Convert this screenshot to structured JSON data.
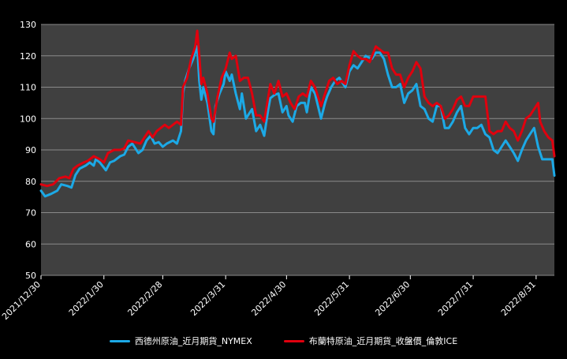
{
  "chart_data": {
    "type": "line",
    "title": "",
    "xlabel": "",
    "ylabel": "",
    "ylim": [
      50,
      130
    ],
    "yticks": [
      50,
      60,
      70,
      80,
      90,
      100,
      110,
      120,
      130
    ],
    "xlim": [
      "2021-12-30",
      "2022-09-09"
    ],
    "xticks": [
      "2021/12/30",
      "2022/1/30",
      "2022/2/28",
      "2022/3/31",
      "2022/4/30",
      "2022/5/31",
      "2022/6/30",
      "2022/7/31",
      "2022/8/31"
    ],
    "grid": true,
    "legend_position": "bottom",
    "plot_background": "#404040",
    "series": [
      {
        "name": "西德州原油_近月期貨_NYMEX",
        "color": "#1ca9e6",
        "points": [
          [
            "2021-12-30",
            77.0
          ],
          [
            "2022-01-01",
            75.2
          ],
          [
            "2022-01-04",
            76.0
          ],
          [
            "2022-01-07",
            77.0
          ],
          [
            "2022-01-09",
            79.0
          ],
          [
            "2022-01-12",
            78.5
          ],
          [
            "2022-01-14",
            78.0
          ],
          [
            "2022-01-16",
            82.0
          ],
          [
            "2022-01-18",
            84.0
          ],
          [
            "2022-01-21",
            85.0
          ],
          [
            "2022-01-23",
            86.0
          ],
          [
            "2022-01-25",
            85.0
          ],
          [
            "2022-01-26",
            87.0
          ],
          [
            "2022-01-28",
            86.0
          ],
          [
            "2022-01-31",
            83.5
          ],
          [
            "2022-02-02",
            86.0
          ],
          [
            "2022-02-04",
            86.5
          ],
          [
            "2022-02-07",
            88.0
          ],
          [
            "2022-02-09",
            88.5
          ],
          [
            "2022-02-11",
            91.0
          ],
          [
            "2022-02-13",
            92.0
          ],
          [
            "2022-02-16",
            89.0
          ],
          [
            "2022-02-18",
            90.0
          ],
          [
            "2022-02-20",
            93.0
          ],
          [
            "2022-02-22",
            94.5
          ],
          [
            "2022-02-24",
            92.0
          ],
          [
            "2022-02-26",
            92.5
          ],
          [
            "2022-02-28",
            91.0
          ],
          [
            "2022-03-02",
            92.0
          ],
          [
            "2022-03-05",
            93.0
          ],
          [
            "2022-03-07",
            92.0
          ],
          [
            "2022-03-09",
            96.0
          ],
          [
            "2022-03-10",
            108.0
          ],
          [
            "2022-03-11",
            112.0
          ],
          [
            "2022-03-13",
            116.0
          ],
          [
            "2022-03-15",
            119.0
          ],
          [
            "2022-03-17",
            123.0
          ],
          [
            "2022-03-18",
            112.0
          ],
          [
            "2022-03-19",
            106.0
          ],
          [
            "2022-03-20",
            110.0
          ],
          [
            "2022-03-22",
            105.0
          ],
          [
            "2022-03-24",
            96.0
          ],
          [
            "2022-03-25",
            95.0
          ],
          [
            "2022-03-26",
            104.0
          ],
          [
            "2022-03-28",
            108.0
          ],
          [
            "2022-03-30",
            111.0
          ],
          [
            "2022-03-31",
            115.0
          ],
          [
            "2022-04-02",
            112.0
          ],
          [
            "2022-04-03",
            114.0
          ],
          [
            "2022-04-05",
            108.0
          ],
          [
            "2022-04-07",
            103.0
          ],
          [
            "2022-04-08",
            108.0
          ],
          [
            "2022-04-10",
            100.0
          ],
          [
            "2022-04-12",
            102.0
          ],
          [
            "2022-04-13",
            103.0
          ],
          [
            "2022-04-15",
            96.0
          ],
          [
            "2022-04-17",
            98.0
          ],
          [
            "2022-04-19",
            94.5
          ],
          [
            "2022-04-21",
            103.0
          ],
          [
            "2022-04-22",
            106.5
          ],
          [
            "2022-04-24",
            107.5
          ],
          [
            "2022-04-26",
            108.0
          ],
          [
            "2022-04-28",
            102.0
          ],
          [
            "2022-04-30",
            104.0
          ],
          [
            "2022-05-01",
            101.0
          ],
          [
            "2022-05-03",
            99.0
          ],
          [
            "2022-05-05",
            104.0
          ],
          [
            "2022-05-07",
            105.0
          ],
          [
            "2022-05-09",
            105.0
          ],
          [
            "2022-05-10",
            102.0
          ],
          [
            "2022-05-12",
            110.0
          ],
          [
            "2022-05-14",
            108.0
          ],
          [
            "2022-05-17",
            100.0
          ],
          [
            "2022-05-19",
            105.0
          ],
          [
            "2022-05-20",
            107.0
          ],
          [
            "2022-05-22",
            110.0
          ],
          [
            "2022-05-24",
            112.0
          ],
          [
            "2022-05-26",
            113.0
          ],
          [
            "2022-05-29",
            110.0
          ],
          [
            "2022-05-31",
            115.0
          ],
          [
            "2022-06-02",
            117.0
          ],
          [
            "2022-06-04",
            116.0
          ],
          [
            "2022-06-06",
            118.0
          ],
          [
            "2022-06-08",
            120.0
          ],
          [
            "2022-06-11",
            119.0
          ],
          [
            "2022-06-13",
            121.0
          ],
          [
            "2022-06-15",
            121.0
          ],
          [
            "2022-06-17",
            119.0
          ],
          [
            "2022-06-19",
            114.0
          ],
          [
            "2022-06-21",
            110.0
          ],
          [
            "2022-06-23",
            110.0
          ],
          [
            "2022-06-25",
            111.0
          ],
          [
            "2022-06-27",
            105.0
          ],
          [
            "2022-06-29",
            108.0
          ],
          [
            "2022-07-01",
            109.0
          ],
          [
            "2022-07-03",
            111.0
          ],
          [
            "2022-07-05",
            104.0
          ],
          [
            "2022-07-07",
            103.0
          ],
          [
            "2022-07-09",
            100.0
          ],
          [
            "2022-07-11",
            99.0
          ],
          [
            "2022-07-13",
            104.0
          ],
          [
            "2022-07-15",
            104.0
          ],
          [
            "2022-07-17",
            97.0
          ],
          [
            "2022-07-19",
            97.0
          ],
          [
            "2022-07-21",
            99.0
          ],
          [
            "2022-07-23",
            102.0
          ],
          [
            "2022-07-25",
            104.0
          ],
          [
            "2022-07-27",
            97.0
          ],
          [
            "2022-07-29",
            95.0
          ],
          [
            "2022-07-31",
            97.0
          ],
          [
            "2022-08-02",
            97.0
          ],
          [
            "2022-08-04",
            98.0
          ],
          [
            "2022-08-06",
            95.0
          ],
          [
            "2022-08-08",
            94.0
          ],
          [
            "2022-08-10",
            90.0
          ],
          [
            "2022-08-12",
            89.0
          ],
          [
            "2022-08-14",
            91.0
          ],
          [
            "2022-08-16",
            93.0
          ],
          [
            "2022-08-18",
            91.0
          ],
          [
            "2022-08-20",
            89.0
          ],
          [
            "2022-08-22",
            86.5
          ],
          [
            "2022-08-24",
            90.0
          ],
          [
            "2022-08-26",
            93.0
          ],
          [
            "2022-08-28",
            95.0
          ],
          [
            "2022-08-30",
            97.0
          ],
          [
            "2022-09-01",
            91.0
          ],
          [
            "2022-09-03",
            87.0
          ],
          [
            "2022-09-06",
            87.0
          ],
          [
            "2022-09-08",
            87.0
          ],
          [
            "2022-09-09",
            81.8
          ]
        ]
      },
      {
        "name": "布蘭特原油_近月期貨_收盤價_倫敦ICE",
        "color": "#e0000e",
        "points": [
          [
            "2021-12-30",
            79.0
          ],
          [
            "2022-01-02",
            78.5
          ],
          [
            "2022-01-05",
            79.0
          ],
          [
            "2022-01-08",
            81.0
          ],
          [
            "2022-01-11",
            81.5
          ],
          [
            "2022-01-13",
            81.0
          ],
          [
            "2022-01-15",
            84.0
          ],
          [
            "2022-01-17",
            85.0
          ],
          [
            "2022-01-20",
            86.0
          ],
          [
            "2022-01-22",
            86.5
          ],
          [
            "2022-01-25",
            88.0
          ],
          [
            "2022-01-28",
            87.0
          ],
          [
            "2022-01-30",
            86.0
          ],
          [
            "2022-02-01",
            89.0
          ],
          [
            "2022-02-04",
            90.0
          ],
          [
            "2022-02-07",
            90.0
          ],
          [
            "2022-02-09",
            90.5
          ],
          [
            "2022-02-11",
            93.0
          ],
          [
            "2022-02-14",
            92.5
          ],
          [
            "2022-02-17",
            92.0
          ],
          [
            "2022-02-19",
            94.0
          ],
          [
            "2022-02-21",
            96.0
          ],
          [
            "2022-02-23",
            94.0
          ],
          [
            "2022-02-25",
            96.0
          ],
          [
            "2022-02-27",
            97.0
          ],
          [
            "2022-03-01",
            98.0
          ],
          [
            "2022-03-03",
            97.0
          ],
          [
            "2022-03-05",
            98.0
          ],
          [
            "2022-03-07",
            99.0
          ],
          [
            "2022-03-09",
            98.0
          ],
          [
            "2022-03-10",
            110.0
          ],
          [
            "2022-03-12",
            113.0
          ],
          [
            "2022-03-14",
            119.0
          ],
          [
            "2022-03-16",
            123.0
          ],
          [
            "2022-03-17",
            128.0
          ],
          [
            "2022-03-18",
            120.0
          ],
          [
            "2022-03-19",
            111.0
          ],
          [
            "2022-03-20",
            113.0
          ],
          [
            "2022-03-22",
            108.0
          ],
          [
            "2022-03-24",
            100.0
          ],
          [
            "2022-03-25",
            99.0
          ],
          [
            "2022-03-27",
            107.0
          ],
          [
            "2022-03-29",
            113.0
          ],
          [
            "2022-03-31",
            116.0
          ],
          [
            "2022-04-02",
            121.0
          ],
          [
            "2022-04-03",
            119.0
          ],
          [
            "2022-04-05",
            120.0
          ],
          [
            "2022-04-07",
            112.0
          ],
          [
            "2022-04-09",
            113.0
          ],
          [
            "2022-04-11",
            113.0
          ],
          [
            "2022-04-13",
            108.0
          ],
          [
            "2022-04-15",
            101.0
          ],
          [
            "2022-04-17",
            101.0
          ],
          [
            "2022-04-19",
            99.0
          ],
          [
            "2022-04-21",
            107.0
          ],
          [
            "2022-04-22",
            111.0
          ],
          [
            "2022-04-24",
            108.0
          ],
          [
            "2022-04-26",
            112.0
          ],
          [
            "2022-04-28",
            107.0
          ],
          [
            "2022-04-30",
            108.0
          ],
          [
            "2022-05-02",
            105.0
          ],
          [
            "2022-05-04",
            103.0
          ],
          [
            "2022-05-06",
            107.0
          ],
          [
            "2022-05-08",
            108.0
          ],
          [
            "2022-05-10",
            107.0
          ],
          [
            "2022-05-12",
            112.0
          ],
          [
            "2022-05-14",
            110.0
          ],
          [
            "2022-05-17",
            104.0
          ],
          [
            "2022-05-19",
            108.0
          ],
          [
            "2022-05-21",
            112.0
          ],
          [
            "2022-05-23",
            113.0
          ],
          [
            "2022-05-25",
            111.0
          ],
          [
            "2022-05-27",
            112.0
          ],
          [
            "2022-05-29",
            111.0
          ],
          [
            "2022-05-31",
            117.0
          ],
          [
            "2022-06-02",
            121.5
          ],
          [
            "2022-06-04",
            120.0
          ],
          [
            "2022-06-06",
            119.0
          ],
          [
            "2022-06-08",
            119.0
          ],
          [
            "2022-06-10",
            118.0
          ],
          [
            "2022-06-13",
            123.0
          ],
          [
            "2022-06-15",
            122.0
          ],
          [
            "2022-06-17",
            121.0
          ],
          [
            "2022-06-19",
            121.0
          ],
          [
            "2022-06-21",
            116.0
          ],
          [
            "2022-06-23",
            114.0
          ],
          [
            "2022-06-25",
            114.0
          ],
          [
            "2022-06-27",
            110.0
          ],
          [
            "2022-06-29",
            113.0
          ],
          [
            "2022-07-01",
            115.0
          ],
          [
            "2022-07-03",
            118.0
          ],
          [
            "2022-07-05",
            116.0
          ],
          [
            "2022-07-07",
            107.0
          ],
          [
            "2022-07-09",
            105.0
          ],
          [
            "2022-07-11",
            104.0
          ],
          [
            "2022-07-13",
            105.0
          ],
          [
            "2022-07-15",
            104.0
          ],
          [
            "2022-07-17",
            100.0
          ],
          [
            "2022-07-19",
            101.0
          ],
          [
            "2022-07-21",
            103.0
          ],
          [
            "2022-07-23",
            106.0
          ],
          [
            "2022-07-25",
            107.0
          ],
          [
            "2022-07-27",
            104.0
          ],
          [
            "2022-07-29",
            104.0
          ],
          [
            "2022-07-31",
            107.0
          ],
          [
            "2022-08-02",
            107.0
          ],
          [
            "2022-08-04",
            107.0
          ],
          [
            "2022-08-06",
            107.0
          ],
          [
            "2022-08-08",
            96.0
          ],
          [
            "2022-08-10",
            95.0
          ],
          [
            "2022-08-12",
            96.0
          ],
          [
            "2022-08-14",
            96.0
          ],
          [
            "2022-08-16",
            99.0
          ],
          [
            "2022-08-18",
            97.0
          ],
          [
            "2022-08-20",
            96.0
          ],
          [
            "2022-08-22",
            93.0
          ],
          [
            "2022-08-24",
            96.0
          ],
          [
            "2022-08-26",
            100.0
          ],
          [
            "2022-08-28",
            101.0
          ],
          [
            "2022-08-30",
            103.0
          ],
          [
            "2022-09-01",
            105.0
          ],
          [
            "2022-09-02",
            99.0
          ],
          [
            "2022-09-04",
            96.0
          ],
          [
            "2022-09-06",
            94.0
          ],
          [
            "2022-09-08",
            93.0
          ],
          [
            "2022-09-09",
            88.0
          ]
        ]
      }
    ]
  }
}
